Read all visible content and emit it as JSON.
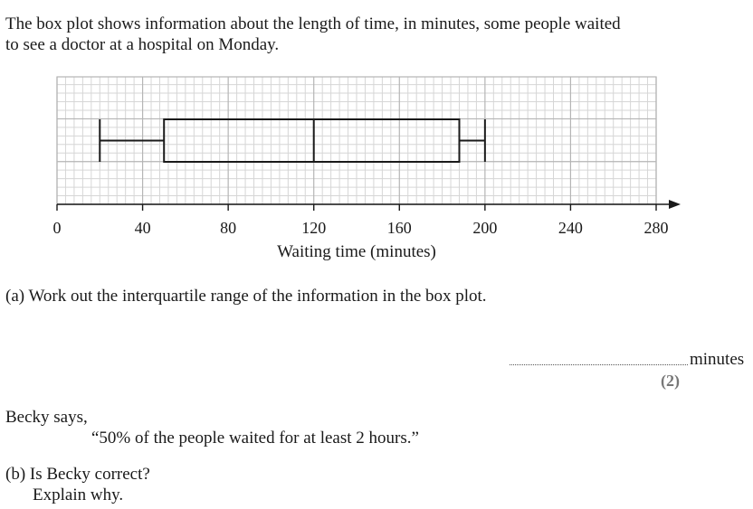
{
  "question": {
    "intro_line1": "The box plot shows information about the length of time, in minutes, some people waited",
    "intro_line2": "to see a doctor at a hospital on Monday.",
    "part_a": "(a) Work out the interquartile range of the information in the box plot.",
    "answer_unit": "minutes",
    "marks": "(2)",
    "becky_says": "Becky says,",
    "becky_quote": "“50% of the people waited for at least 2 hours.”",
    "part_b_line1": "(b) Is Becky correct?",
    "part_b_line2": "Explain why."
  },
  "chart_data": {
    "type": "box",
    "xlabel": "Waiting time (minutes)",
    "xlim": [
      0,
      280
    ],
    "ticks": [
      0,
      40,
      80,
      120,
      160,
      200,
      240,
      280
    ],
    "tick_labels": [
      "0",
      "40",
      "80",
      "120",
      "160",
      "200",
      "240",
      "280"
    ],
    "box": {
      "min": 20,
      "q1": 50,
      "median": 120,
      "q3": 188,
      "max": 200
    },
    "grid": true,
    "minor_step": 4,
    "major_step": 40
  }
}
